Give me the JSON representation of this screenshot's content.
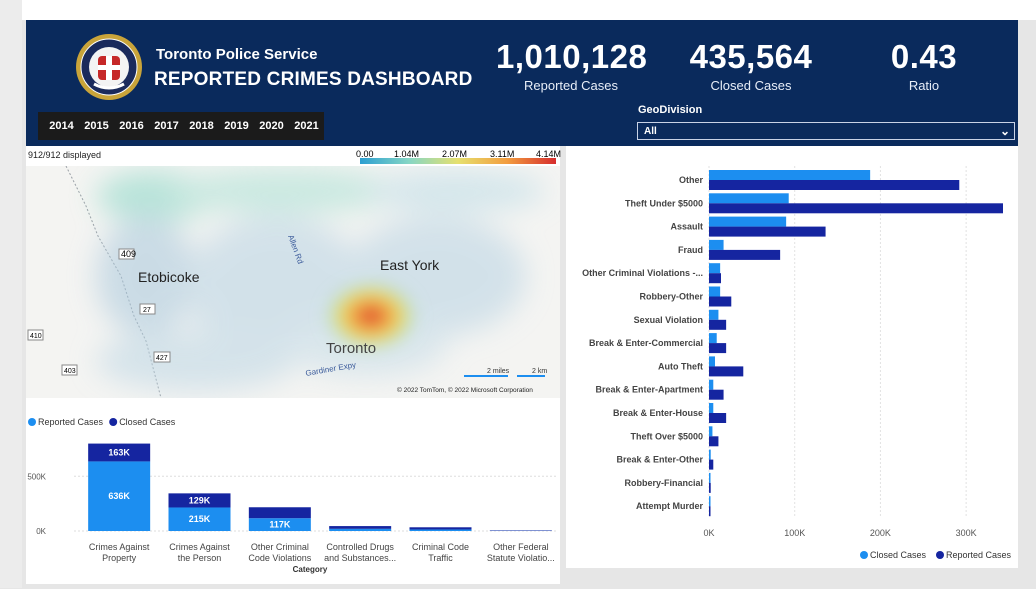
{
  "header": {
    "org": "Toronto Police Service",
    "title": "REPORTED CRIMES DASHBOARD",
    "years": [
      "2014",
      "2015",
      "2016",
      "2017",
      "2018",
      "2019",
      "2020",
      "2021"
    ],
    "kpis": [
      {
        "value": "1,010,128",
        "label": "Reported Cases"
      },
      {
        "value": "435,564",
        "label": "Closed Cases"
      },
      {
        "value": "0.43",
        "label": "Ratio"
      }
    ],
    "geodivision": {
      "label": "GeoDivision",
      "value": "All"
    }
  },
  "map": {
    "displayed": "912/912 displayed",
    "legend_ticks": [
      "0.00",
      "1.04M",
      "2.07M",
      "3.11M",
      "4.14M"
    ],
    "places": [
      "Etobicoke",
      "East York",
      "Toronto"
    ],
    "roads": [
      "Allen Rd",
      "Gardiner Expy"
    ],
    "shields": [
      "409",
      "27",
      "427",
      "410",
      "403"
    ],
    "scale": [
      "2 miles",
      "2 km"
    ],
    "copyright": "© 2022 TomTom, © 2022 Microsoft Corporation",
    "colors": {
      "low": "#2b9fd1",
      "mid": "#e6e06e",
      "high": "#d62d2d"
    }
  },
  "chart_data": [
    {
      "type": "bar",
      "legend": [
        "Reported Cases",
        "Closed Cases"
      ],
      "xlabel": "Category",
      "categories": [
        "Crimes Against Property",
        "Crimes Against the Person",
        "Other Criminal Code Violations",
        "Controlled Drugs and Substances...",
        "Criminal Code Traffic",
        "Other Federal Statute Violatio..."
      ],
      "category_lines": [
        [
          "Crimes Against",
          "Property"
        ],
        [
          "Crimes Against",
          "the Person"
        ],
        [
          "Other Criminal",
          "Code Violations"
        ],
        [
          "Controlled Drugs",
          "and Substances..."
        ],
        [
          "Criminal Code",
          "Traffic"
        ],
        [
          "Other Federal",
          "Statute Violatio..."
        ]
      ],
      "series": [
        {
          "name": "Reported Cases",
          "values": [
            636000,
            215000,
            117000,
            20000,
            14000,
            2000
          ],
          "labels": [
            "636K",
            "215K",
            "117K",
            "",
            "",
            ""
          ],
          "color": "#1c8ef0"
        },
        {
          "name": "Closed Cases",
          "values": [
            163000,
            129000,
            100000,
            25000,
            20000,
            4000
          ],
          "labels": [
            "163K",
            "129K",
            "",
            "",
            "",
            ""
          ],
          "color": "#1525a0"
        }
      ],
      "yticks": [
        "0K",
        "500K"
      ],
      "ylim": [
        0,
        850000
      ]
    },
    {
      "type": "bar",
      "orientation": "horizontal",
      "categories": [
        "Other",
        "Theft Under $5000",
        "Assault",
        "Fraud",
        "Other Criminal Violations -...",
        "Robbery-Other",
        "Sexual Violation",
        "Break & Enter-Commercial",
        "Auto Theft",
        "Break & Enter-Apartment",
        "Break & Enter-House",
        "Theft Over $5000",
        "Break & Enter-Other",
        "Robbery-Financial",
        "Attempt Murder"
      ],
      "series": [
        {
          "name": "Closed Cases",
          "values": [
            188000,
            93000,
            90000,
            17000,
            13000,
            13000,
            11000,
            9000,
            7000,
            5000,
            5000,
            4000,
            2000,
            1000,
            500
          ],
          "color": "#1c8ef0"
        },
        {
          "name": "Reported Cases",
          "values": [
            292000,
            343000,
            136000,
            83000,
            14000,
            26000,
            20000,
            20000,
            40000,
            17000,
            20000,
            11000,
            5000,
            2000,
            1500
          ],
          "color": "#1525a0"
        }
      ],
      "xticks": [
        "0K",
        "100K",
        "200K",
        "300K"
      ],
      "xlim": [
        0,
        350000
      ],
      "legend": [
        "Closed Cases",
        "Reported Cases"
      ]
    }
  ]
}
